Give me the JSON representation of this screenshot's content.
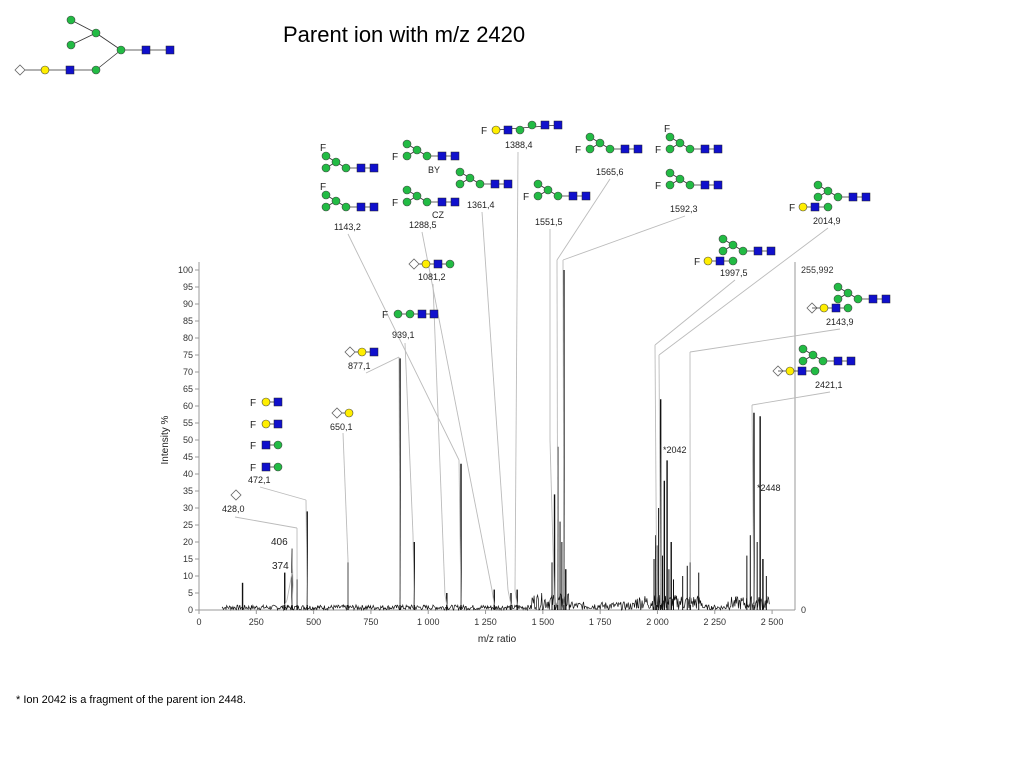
{
  "title": "Parent ion with m/z 2420",
  "footnote": "* Ion 2042 is a fragment of the parent ion 2448.",
  "colors": {
    "galactose": "#ffee00",
    "mannose": "#22bb44",
    "glcnac": "#1010cc",
    "sialic": "#bbbbbb",
    "peak": "#111111",
    "leader": "#bbbbbb"
  },
  "chart_data": {
    "type": "line",
    "title": "",
    "xlabel": "m/z ratio",
    "ylabel": "Intensity %",
    "xlim": [
      0,
      2600
    ],
    "ylim": [
      0,
      100
    ],
    "x_ticks": [
      "0",
      "250",
      "500",
      "750",
      "1 000",
      "1 250",
      "1 500",
      "1 750",
      "2 000",
      "2 250",
      "2 500"
    ],
    "y_ticks": [
      "0",
      "5",
      "10",
      "15",
      "20",
      "25",
      "30",
      "35",
      "40",
      "45",
      "50",
      "55",
      "60",
      "65",
      "70",
      "75",
      "80",
      "85",
      "90",
      "95",
      "100"
    ],
    "right_axis_top": "255,992",
    "right_axis_bottom": "0",
    "peaks": [
      {
        "x": 190,
        "y": 8
      },
      {
        "x": 374,
        "y": 11
      },
      {
        "x": 406,
        "y": 18
      },
      {
        "x": 428,
        "y": 9
      },
      {
        "x": 472,
        "y": 29
      },
      {
        "x": 650,
        "y": 14
      },
      {
        "x": 877,
        "y": 74
      },
      {
        "x": 939,
        "y": 20
      },
      {
        "x": 1081,
        "y": 5
      },
      {
        "x": 1143,
        "y": 43
      },
      {
        "x": 1288,
        "y": 6
      },
      {
        "x": 1361,
        "y": 5
      },
      {
        "x": 1388,
        "y": 6
      },
      {
        "x": 1551,
        "y": 34
      },
      {
        "x": 1565,
        "y": 48
      },
      {
        "x": 1592,
        "y": 100
      },
      {
        "x": 1600,
        "y": 12
      },
      {
        "x": 1997,
        "y": 19
      },
      {
        "x": 2014,
        "y": 62
      },
      {
        "x": 2030,
        "y": 38
      },
      {
        "x": 2042,
        "y": 44
      },
      {
        "x": 2060,
        "y": 20
      },
      {
        "x": 2143,
        "y": 14
      },
      {
        "x": 2421,
        "y": 58
      },
      {
        "x": 2448,
        "y": 57
      },
      {
        "x": 2460,
        "y": 15
      }
    ],
    "annotations": [
      {
        "label": "374",
        "x": 374
      },
      {
        "label": "406",
        "x": 406
      },
      {
        "label": "428,0",
        "x": 428
      },
      {
        "label": "472,1",
        "x": 472
      },
      {
        "label": "650,1",
        "x": 650
      },
      {
        "label": "877,1",
        "x": 877
      },
      {
        "label": "939,1",
        "x": 939
      },
      {
        "label": "1081,2",
        "x": 1081
      },
      {
        "label": "1143,2",
        "x": 1143
      },
      {
        "label": "1288,5",
        "x": 1288
      },
      {
        "label": "1361,4",
        "x": 1361
      },
      {
        "label": "1388,4",
        "x": 1388
      },
      {
        "label": "1551,5",
        "x": 1551
      },
      {
        "label": "1565,6",
        "x": 1565
      },
      {
        "label": "1592,3",
        "x": 1592
      },
      {
        "label": "1997,5",
        "x": 1997
      },
      {
        "label": "2014,9",
        "x": 2014
      },
      {
        "label": "2143,9",
        "x": 2143
      },
      {
        "label": "2421,1",
        "x": 2421
      },
      {
        "label": "*2042",
        "x": 2042
      },
      {
        "label": "*2448",
        "x": 2448
      }
    ],
    "fragment_labels": [
      "BY",
      "CZ"
    ],
    "fucose_symbol": "F"
  }
}
